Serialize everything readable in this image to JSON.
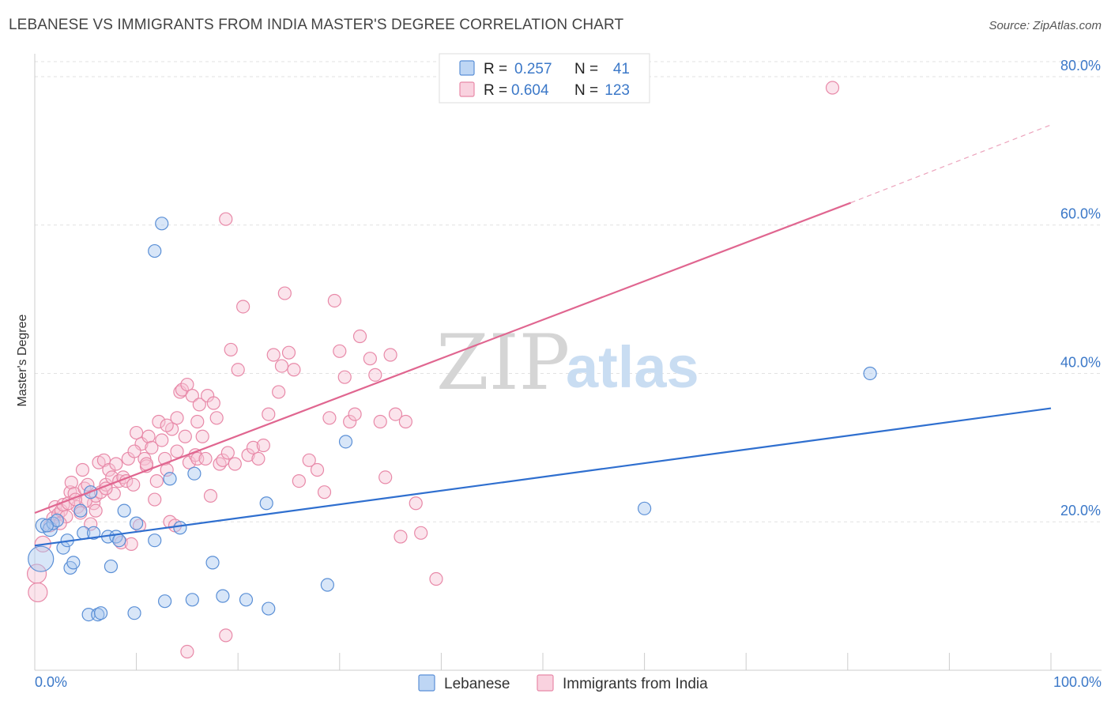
{
  "title": "LEBANESE VS IMMIGRANTS FROM INDIA MASTER'S DEGREE CORRELATION CHART",
  "source": "Source: ZipAtlas.com",
  "watermark": {
    "zip": "ZIP",
    "atlas": "atlas"
  },
  "chart_data": {
    "type": "scatter",
    "title": "LEBANESE VS IMMIGRANTS FROM INDIA MASTER'S DEGREE CORRELATION CHART",
    "xlabel": "",
    "ylabel": "Master's Degree",
    "xlim": [
      0,
      100
    ],
    "ylim": [
      0,
      85
    ],
    "x_tick_labels": [
      "0.0%",
      "100.0%"
    ],
    "y_ticks": [
      20,
      40,
      60,
      80
    ],
    "y_tick_labels": [
      "20.0%",
      "40.0%",
      "60.0%",
      "80.0%"
    ],
    "grid": true,
    "legend": {
      "placement": "top-center",
      "entries": [
        {
          "r_label": "R =",
          "r_value": "0.257",
          "n_label": "N =",
          "n_value": "41",
          "series": "Lebanese"
        },
        {
          "r_label": "R =",
          "r_value": "0.604",
          "n_label": "N =",
          "n_value": "123",
          "series": "Immigrants from India"
        }
      ]
    },
    "bottom_legend": [
      "Lebanese",
      "Immigrants from India"
    ],
    "colors": {
      "lebanese_fill": "#a8c8f0",
      "lebanese_stroke": "#5a8fd6",
      "lebanese_line": "#2f6fcf",
      "india_fill": "#f7c3d4",
      "india_stroke": "#e889a8",
      "india_line": "#e06690"
    },
    "series": [
      {
        "name": "Lebanese",
        "trend": {
          "x0": 0,
          "y0": 16.8,
          "x1": 100,
          "y1": 35.3
        },
        "points": [
          [
            0.6,
            15.0,
            16
          ],
          [
            0.8,
            19.5,
            9
          ],
          [
            1.5,
            19.0,
            9
          ],
          [
            1.8,
            19.8,
            8
          ],
          [
            2.2,
            20.2,
            8
          ],
          [
            2.8,
            16.5,
            8
          ],
          [
            3.2,
            17.5,
            8
          ],
          [
            3.5,
            13.8,
            8
          ],
          [
            3.8,
            14.5,
            8
          ],
          [
            4.5,
            21.5,
            8
          ],
          [
            4.8,
            18.5,
            8
          ],
          [
            5.3,
            7.5,
            8
          ],
          [
            5.5,
            24.0,
            8
          ],
          [
            5.8,
            18.5,
            8
          ],
          [
            6.2,
            7.5,
            8
          ],
          [
            6.5,
            7.7,
            8
          ],
          [
            7.2,
            18.0,
            8
          ],
          [
            7.5,
            14.0,
            8
          ],
          [
            8.0,
            18.0,
            8
          ],
          [
            8.3,
            17.5,
            8
          ],
          [
            8.8,
            21.5,
            8
          ],
          [
            9.8,
            7.7,
            8
          ],
          [
            10.0,
            19.8,
            8
          ],
          [
            11.8,
            17.5,
            8
          ],
          [
            12.5,
            60.2,
            8
          ],
          [
            12.8,
            9.3,
            8
          ],
          [
            13.3,
            25.8,
            8
          ],
          [
            14.3,
            19.2,
            8
          ],
          [
            15.5,
            9.5,
            8
          ],
          [
            15.7,
            26.5,
            8
          ],
          [
            17.5,
            14.5,
            8
          ],
          [
            18.5,
            10.0,
            8
          ],
          [
            20.8,
            9.5,
            8
          ],
          [
            22.8,
            22.5,
            8
          ],
          [
            23.0,
            8.3,
            8
          ],
          [
            28.8,
            11.5,
            8
          ],
          [
            30.6,
            30.8,
            8
          ],
          [
            60.0,
            21.8,
            8
          ],
          [
            82.2,
            40.0,
            8
          ],
          [
            11.8,
            56.5,
            8
          ],
          [
            1.2,
            19.5,
            8
          ]
        ]
      },
      {
        "name": "Immigrants from India",
        "trend": {
          "x0": 0,
          "y0": 21.2,
          "x1": 80.3,
          "y1": 63.0
        },
        "trend_dashed": {
          "x0": 80.3,
          "y0": 63.0,
          "x1": 100,
          "y1": 73.5
        },
        "points": [
          [
            0.2,
            13.0,
            12
          ],
          [
            0.3,
            10.5,
            12
          ],
          [
            0.8,
            17.0,
            10
          ],
          [
            1.5,
            19.5,
            8
          ],
          [
            1.8,
            20.5,
            8
          ],
          [
            2.0,
            22.0,
            8
          ],
          [
            2.3,
            21.0,
            8
          ],
          [
            2.6,
            21.5,
            8
          ],
          [
            2.8,
            22.3,
            8
          ],
          [
            3.1,
            20.7,
            8
          ],
          [
            3.5,
            24.0,
            8
          ],
          [
            3.6,
            25.3,
            8
          ],
          [
            3.9,
            23.8,
            8
          ],
          [
            4.2,
            22.0,
            8
          ],
          [
            4.5,
            21.2,
            8
          ],
          [
            4.7,
            27.0,
            8
          ],
          [
            4.9,
            24.5,
            8
          ],
          [
            5.2,
            25.0,
            8
          ],
          [
            5.5,
            19.7,
            8
          ],
          [
            5.8,
            22.5,
            8
          ],
          [
            6.0,
            23.5,
            8
          ],
          [
            6.3,
            28.0,
            8
          ],
          [
            6.5,
            24.0,
            8
          ],
          [
            6.8,
            28.3,
            8
          ],
          [
            7.0,
            25.0,
            8
          ],
          [
            7.3,
            27.0,
            8
          ],
          [
            7.6,
            26.0,
            8
          ],
          [
            7.8,
            23.8,
            8
          ],
          [
            8.0,
            27.8,
            8
          ],
          [
            8.3,
            25.5,
            8
          ],
          [
            8.5,
            17.2,
            8
          ],
          [
            8.7,
            26.0,
            8
          ],
          [
            9.0,
            25.5,
            8
          ],
          [
            9.2,
            28.5,
            8
          ],
          [
            9.5,
            17.0,
            8
          ],
          [
            9.7,
            25.0,
            8
          ],
          [
            10.0,
            32.0,
            8
          ],
          [
            10.3,
            19.5,
            8
          ],
          [
            10.5,
            30.5,
            8
          ],
          [
            10.8,
            28.5,
            8
          ],
          [
            11.0,
            27.5,
            8
          ],
          [
            11.2,
            31.5,
            8
          ],
          [
            11.5,
            30.0,
            8
          ],
          [
            11.8,
            23.0,
            8
          ],
          [
            12.0,
            25.5,
            8
          ],
          [
            12.2,
            33.5,
            8
          ],
          [
            12.5,
            31.0,
            8
          ],
          [
            12.8,
            28.5,
            8
          ],
          [
            13.0,
            27.0,
            8
          ],
          [
            13.3,
            20.0,
            8
          ],
          [
            13.5,
            32.5,
            8
          ],
          [
            13.8,
            19.5,
            8
          ],
          [
            14.0,
            34.0,
            8
          ],
          [
            14.3,
            37.5,
            8
          ],
          [
            14.5,
            37.8,
            8
          ],
          [
            14.8,
            31.5,
            8
          ],
          [
            15.0,
            38.5,
            8
          ],
          [
            15.2,
            28.0,
            8
          ],
          [
            15.5,
            37.0,
            8
          ],
          [
            15.8,
            29.0,
            8
          ],
          [
            16.0,
            28.5,
            8
          ],
          [
            16.2,
            35.8,
            8
          ],
          [
            16.5,
            31.5,
            8
          ],
          [
            16.8,
            28.5,
            8
          ],
          [
            17.0,
            37.0,
            8
          ],
          [
            17.3,
            23.5,
            8
          ],
          [
            17.6,
            36.0,
            8
          ],
          [
            17.9,
            34.0,
            8
          ],
          [
            18.2,
            27.8,
            8
          ],
          [
            18.5,
            28.3,
            8
          ],
          [
            18.8,
            60.8,
            8
          ],
          [
            19.0,
            29.3,
            8
          ],
          [
            19.3,
            43.2,
            8
          ],
          [
            19.7,
            27.8,
            8
          ],
          [
            20.0,
            40.5,
            8
          ],
          [
            20.5,
            49.0,
            8
          ],
          [
            21.0,
            29.0,
            8
          ],
          [
            21.5,
            30.0,
            8
          ],
          [
            22.0,
            28.5,
            8
          ],
          [
            22.5,
            30.3,
            8
          ],
          [
            23.0,
            34.5,
            8
          ],
          [
            23.5,
            42.5,
            8
          ],
          [
            24.0,
            37.5,
            8
          ],
          [
            24.3,
            41.0,
            8
          ],
          [
            24.6,
            50.8,
            8
          ],
          [
            25.0,
            42.8,
            8
          ],
          [
            25.5,
            40.5,
            8
          ],
          [
            26.0,
            25.5,
            8
          ],
          [
            27.0,
            28.3,
            8
          ],
          [
            27.8,
            27.0,
            8
          ],
          [
            28.5,
            24.0,
            8
          ],
          [
            29.0,
            34.0,
            8
          ],
          [
            29.5,
            49.8,
            8
          ],
          [
            30.0,
            43.0,
            8
          ],
          [
            30.5,
            39.5,
            8
          ],
          [
            31.0,
            33.5,
            8
          ],
          [
            31.5,
            34.5,
            8
          ],
          [
            32.0,
            45.0,
            8
          ],
          [
            33.0,
            42.0,
            8
          ],
          [
            33.5,
            39.8,
            8
          ],
          [
            34.0,
            33.5,
            8
          ],
          [
            34.5,
            26.0,
            8
          ],
          [
            35.0,
            42.5,
            8
          ],
          [
            35.5,
            34.5,
            8
          ],
          [
            36.0,
            18.0,
            8
          ],
          [
            36.5,
            33.5,
            8
          ],
          [
            37.5,
            22.5,
            8
          ],
          [
            39.5,
            12.3,
            8
          ],
          [
            38.0,
            18.5,
            8
          ],
          [
            15.0,
            2.5,
            8
          ],
          [
            18.8,
            4.7,
            8
          ],
          [
            7.0,
            24.5,
            8
          ],
          [
            6.0,
            21.5,
            8
          ],
          [
            5.0,
            22.8,
            8
          ],
          [
            9.8,
            29.5,
            8
          ],
          [
            11.0,
            27.8,
            8
          ],
          [
            13.0,
            33.0,
            8
          ],
          [
            14.0,
            29.5,
            8
          ],
          [
            78.5,
            78.5,
            8
          ],
          [
            16.0,
            33.5,
            8
          ],
          [
            2.5,
            19.8,
            8
          ],
          [
            3.3,
            22.5,
            8
          ],
          [
            4.0,
            23.0,
            8
          ]
        ]
      }
    ]
  }
}
